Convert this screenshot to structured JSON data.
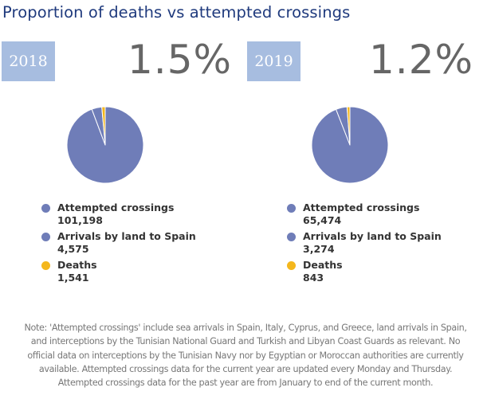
{
  "title": "Proportion of deaths vs attempted crossings",
  "colors": {
    "attempted": "#6f7db8",
    "arrivals": "#6f7db8",
    "deaths": "#f4b71d",
    "year_box": "#a7bde0",
    "title": "#1f3a7d"
  },
  "panels": [
    {
      "year": "2018",
      "percentage": "1.5%",
      "legend": [
        {
          "label": "Attempted crossings",
          "value": "101,198"
        },
        {
          "label": "Arrivals by land to Spain",
          "value": "4,575"
        },
        {
          "label": "Deaths",
          "value": "1,541"
        }
      ]
    },
    {
      "year": "2019",
      "percentage": "1.2%",
      "legend": [
        {
          "label": "Attempted crossings",
          "value": "65,474"
        },
        {
          "label": "Arrivals by land to Spain",
          "value": "3,274"
        },
        {
          "label": "Deaths",
          "value": "843"
        }
      ]
    }
  ],
  "chart_data": [
    {
      "type": "pie",
      "title": "2018",
      "categories": [
        "Attempted crossings",
        "Arrivals by land to Spain",
        "Deaths"
      ],
      "values": [
        101198,
        4575,
        1541
      ],
      "colors": [
        "#6f7db8",
        "#6f7db8",
        "#f4b71d"
      ],
      "annotation": "1.5%",
      "legend": "bottom"
    },
    {
      "type": "pie",
      "title": "2019",
      "categories": [
        "Attempted crossings",
        "Arrivals by land to Spain",
        "Deaths"
      ],
      "values": [
        65474,
        3274,
        843
      ],
      "colors": [
        "#6f7db8",
        "#6f7db8",
        "#f4b71d"
      ],
      "annotation": "1.2%",
      "legend": "bottom"
    }
  ],
  "note": "Note: 'Attempted crossings' include sea arrivals in Spain, Italy, Cyprus, and Greece, land arrivals in Spain, and interceptions by the Tunisian National Guard and Turkish and Libyan Coast Guards as relevant. No official data on interceptions by the Tunisian Navy nor by Egyptian or Moroccan authorities are currently available. Attempted crossings data for the current year are updated every Monday and Thursday. Attempted crossings data for the past year are from January to end of the current month."
}
